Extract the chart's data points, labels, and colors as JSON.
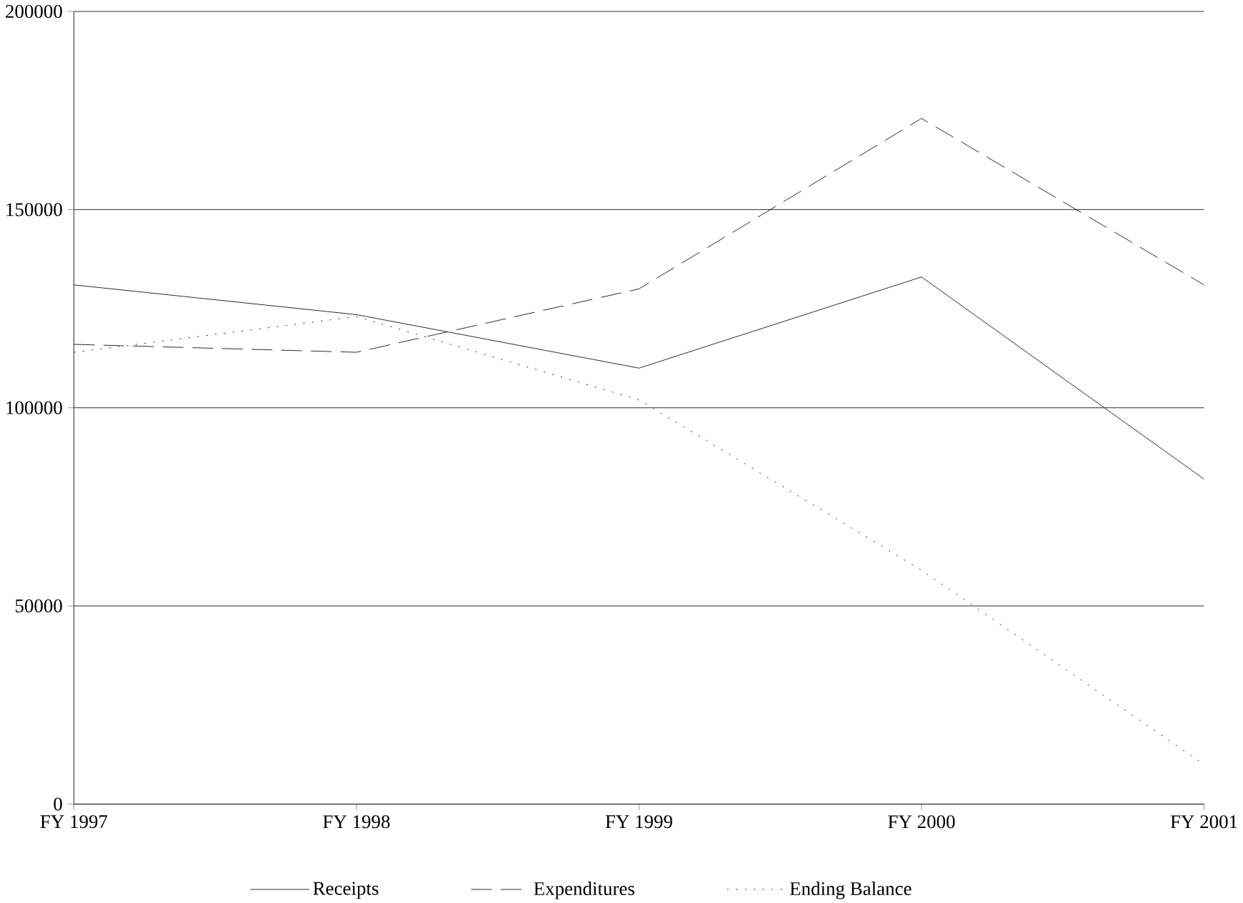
{
  "chart_data": {
    "type": "line",
    "categories": [
      "FY 1997",
      "FY 1998",
      "FY 1999",
      "FY 2000",
      "FY 2001"
    ],
    "series": [
      {
        "name": "Receipts",
        "color": "#000000",
        "line_style": "solid",
        "values": [
          131000,
          123500,
          110000,
          133000,
          82000
        ]
      },
      {
        "name": "Expenditures",
        "color": "#000000",
        "line_style": "dashed",
        "values": [
          116000,
          114000,
          130000,
          173000,
          131000
        ]
      },
      {
        "name": "Ending Balance",
        "color": "#000000",
        "line_style": "dotted",
        "values": [
          114000,
          123000,
          102000,
          59000,
          10000
        ]
      }
    ],
    "ylim": [
      0,
      200000
    ],
    "yticks": [
      0,
      50000,
      100000,
      150000,
      200000
    ],
    "grid": "y",
    "legend": "bottom"
  }
}
